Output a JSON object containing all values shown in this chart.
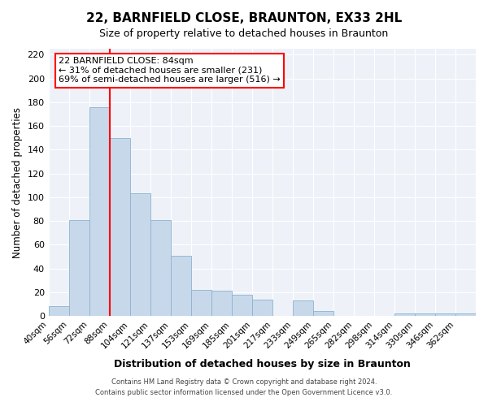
{
  "title": "22, BARNFIELD CLOSE, BRAUNTON, EX33 2HL",
  "subtitle": "Size of property relative to detached houses in Braunton",
  "xlabel": "Distribution of detached houses by size in Braunton",
  "ylabel": "Number of detached properties",
  "bar_color": "#c8d8eb",
  "bar_edge_color": "#8ab4cc",
  "bins": [
    "40sqm",
    "56sqm",
    "72sqm",
    "88sqm",
    "104sqm",
    "121sqm",
    "137sqm",
    "153sqm",
    "169sqm",
    "185sqm",
    "201sqm",
    "217sqm",
    "233sqm",
    "249sqm",
    "265sqm",
    "282sqm",
    "298sqm",
    "314sqm",
    "330sqm",
    "346sqm",
    "362sqm"
  ],
  "values": [
    8,
    81,
    176,
    150,
    103,
    81,
    51,
    22,
    21,
    18,
    14,
    0,
    13,
    4,
    0,
    0,
    0,
    2,
    2,
    2,
    2
  ],
  "ylim": [
    0,
    225
  ],
  "yticks": [
    0,
    20,
    40,
    60,
    80,
    100,
    120,
    140,
    160,
    180,
    200,
    220
  ],
  "red_line_bin_index": 3,
  "marker_label": "22 BARNFIELD CLOSE: 84sqm",
  "annotation_line1": "← 31% of detached houses are smaller (231)",
  "annotation_line2": "69% of semi-detached houses are larger (516) →",
  "footer1": "Contains HM Land Registry data © Crown copyright and database right 2024.",
  "footer2": "Contains public sector information licensed under the Open Government Licence v3.0.",
  "bg_color": "#eef2f8",
  "grid_color": "#ffffff"
}
